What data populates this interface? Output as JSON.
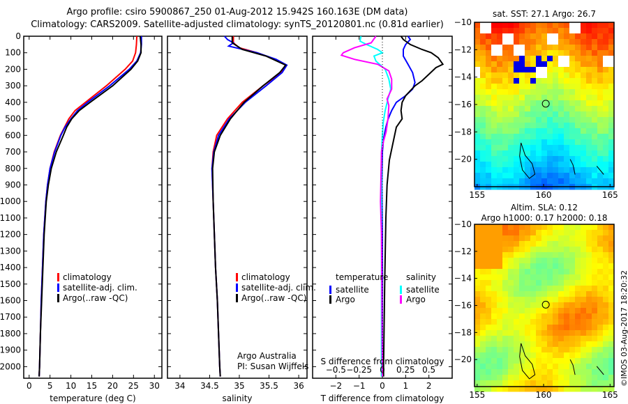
{
  "title_line1": "Argo profile: csiro 5900867_250 01-Aug-2012 15.942S 160.163E (DM data)",
  "title_line2": "Climatology: CARS2009. Satellite-adjusted climatology: synTS_20120801.nc (0.81d earlier)",
  "stamp": "©IMOS 03-Aug-2017 18:20:32",
  "colors": {
    "climatology": "#ff0000",
    "satellite": "#0000ff",
    "argo": "#000000",
    "s_satellite": "#00ffff",
    "s_argo": "#ff00ff"
  },
  "chart_data": [
    {
      "type": "line",
      "xlabel": "temperature (deg C)",
      "xticks": [
        0,
        5,
        10,
        15,
        20,
        25,
        30
      ],
      "xlim": [
        -1.3,
        31.8
      ],
      "ylim": [
        0,
        2070
      ],
      "yticks": [
        0,
        100,
        200,
        300,
        400,
        500,
        600,
        700,
        800,
        900,
        1000,
        1100,
        1200,
        1300,
        1400,
        1500,
        1600,
        1700,
        1800,
        1900,
        2000
      ],
      "legend": [
        "climatology",
        "satellite-adj. clim.",
        "Argo(..raw -QC)"
      ],
      "series": [
        {
          "name": "climatology",
          "color": "#ff0000",
          "points": [
            [
              0,
              25.8
            ],
            [
              50,
              25.7
            ],
            [
              100,
              25.5
            ],
            [
              150,
              24.8
            ],
            [
              200,
              23
            ],
            [
              300,
              18.5
            ],
            [
              400,
              13.5
            ],
            [
              450,
              11
            ],
            [
              500,
              9.5
            ],
            [
              550,
              8.5
            ],
            [
              600,
              7.5
            ],
            [
              700,
              6
            ],
            [
              800,
              5
            ],
            [
              900,
              4.4
            ],
            [
              1000,
              4
            ],
            [
              1200,
              3.5
            ],
            [
              1400,
              3.2
            ],
            [
              1600,
              2.9
            ],
            [
              1800,
              2.7
            ],
            [
              2000,
              2.5
            ],
            [
              2060,
              2.4
            ]
          ]
        },
        {
          "name": "satellite-adj. clim.",
          "color": "#0000ff",
          "points": [
            [
              0,
              26.9
            ],
            [
              50,
              26.9
            ],
            [
              100,
              26.7
            ],
            [
              150,
              25.8
            ],
            [
              200,
              24
            ],
            [
              300,
              19.3
            ],
            [
              400,
              14
            ],
            [
              450,
              11.6
            ],
            [
              500,
              10
            ],
            [
              550,
              8.6
            ],
            [
              600,
              7.6
            ],
            [
              700,
              6.1
            ],
            [
              800,
              5
            ],
            [
              900,
              4.4
            ],
            [
              1000,
              4
            ],
            [
              1200,
              3.5
            ],
            [
              1400,
              3.2
            ],
            [
              1600,
              2.9
            ],
            [
              1800,
              2.7
            ],
            [
              2000,
              2.5
            ],
            [
              2060,
              2.4
            ]
          ]
        },
        {
          "name": "Argo(..raw -QC)",
          "color": "#000000",
          "points": [
            [
              0,
              26.6
            ],
            [
              50,
              26.8
            ],
            [
              100,
              26.8
            ],
            [
              150,
              26
            ],
            [
              200,
              24.4
            ],
            [
              300,
              20
            ],
            [
              400,
              14.6
            ],
            [
              450,
              12
            ],
            [
              500,
              10.2
            ],
            [
              550,
              9
            ],
            [
              600,
              8.2
            ],
            [
              700,
              6.5
            ],
            [
              800,
              5.3
            ],
            [
              900,
              4.6
            ],
            [
              1000,
              4.1
            ],
            [
              1200,
              3.6
            ],
            [
              1400,
              3.3
            ],
            [
              1600,
              3
            ],
            [
              1800,
              2.7
            ],
            [
              2000,
              2.5
            ],
            [
              2060,
              2.4
            ]
          ]
        }
      ]
    },
    {
      "type": "line",
      "xlabel": "salinity",
      "xticks": [
        34,
        34.5,
        35,
        35.5,
        36
      ],
      "xlim": [
        33.79,
        36.14
      ],
      "ylim": [
        0,
        2070
      ],
      "legend": [
        "climatology",
        "satellite-adj. clim.",
        "Argo(..raw -QC)"
      ],
      "annotation": [
        "Argo Australia",
        "PI: Susan Wijffels"
      ],
      "series": [
        {
          "name": "climatology",
          "color": "#ff0000",
          "points": [
            [
              0,
              34.9
            ],
            [
              40,
              34.9
            ],
            [
              70,
              35
            ],
            [
              100,
              35.3
            ],
            [
              140,
              35.6
            ],
            [
              175,
              35.78
            ],
            [
              220,
              35.7
            ],
            [
              300,
              35.4
            ],
            [
              400,
              35.05
            ],
            [
              500,
              34.8
            ],
            [
              600,
              34.62
            ],
            [
              700,
              34.56
            ],
            [
              800,
              34.54
            ],
            [
              1000,
              34.56
            ],
            [
              1200,
              34.58
            ],
            [
              1400,
              34.6
            ],
            [
              1600,
              34.63
            ],
            [
              1800,
              34.65
            ],
            [
              2000,
              34.67
            ],
            [
              2060,
              34.68
            ]
          ]
        },
        {
          "name": "satellite-adj. clim.",
          "color": "#0000ff",
          "points": [
            [
              0,
              34.75
            ],
            [
              20,
              34.8
            ],
            [
              40,
              34.9
            ],
            [
              60,
              34.82
            ],
            [
              100,
              35.3
            ],
            [
              140,
              35.62
            ],
            [
              175,
              35.8
            ],
            [
              220,
              35.72
            ],
            [
              300,
              35.45
            ],
            [
              400,
              35.1
            ],
            [
              500,
              34.83
            ],
            [
              600,
              34.65
            ],
            [
              700,
              34.57
            ],
            [
              800,
              34.54
            ],
            [
              1000,
              34.56
            ],
            [
              1200,
              34.58
            ],
            [
              1400,
              34.6
            ],
            [
              1600,
              34.63
            ],
            [
              1800,
              34.65
            ],
            [
              2000,
              34.67
            ],
            [
              2060,
              34.68
            ]
          ]
        },
        {
          "name": "Argo(..raw -QC)",
          "color": "#000000",
          "points": [
            [
              0,
              34.88
            ],
            [
              40,
              34.88
            ],
            [
              80,
              35.05
            ],
            [
              120,
              35.45
            ],
            [
              175,
              35.78
            ],
            [
              220,
              35.68
            ],
            [
              300,
              35.4
            ],
            [
              400,
              35.08
            ],
            [
              500,
              34.85
            ],
            [
              600,
              34.68
            ],
            [
              700,
              34.58
            ],
            [
              800,
              34.55
            ],
            [
              1000,
              34.56
            ],
            [
              1200,
              34.58
            ],
            [
              1400,
              34.6
            ],
            [
              1600,
              34.63
            ],
            [
              1800,
              34.65
            ],
            [
              2000,
              34.67
            ],
            [
              2060,
              34.68
            ]
          ]
        }
      ]
    },
    {
      "type": "line",
      "xlabel": "T difference from climatology",
      "xlabel_top": "S difference from climatology",
      "xticks": [
        -2,
        -1,
        0,
        1,
        2
      ],
      "xticks_s": [
        -0.5,
        -0.25,
        0,
        0.25,
        0.5
      ],
      "xlim": [
        -3,
        3
      ],
      "ylim": [
        0,
        2070
      ],
      "legend_t_title": "temperature",
      "legend_s_title": "salinity",
      "legend_t": [
        "satellite",
        "Argo"
      ],
      "legend_s": [
        "satellite",
        "Argo"
      ],
      "series": [
        {
          "name": "T satellite",
          "color": "#0000ff",
          "units": "T",
          "points": [
            [
              0,
              1.1
            ],
            [
              20,
              1.2
            ],
            [
              50,
              1.0
            ],
            [
              80,
              0.9
            ],
            [
              120,
              0.9
            ],
            [
              170,
              1.1
            ],
            [
              220,
              1.3
            ],
            [
              280,
              1.4
            ],
            [
              320,
              1.3
            ],
            [
              360,
              1.0
            ],
            [
              400,
              0.6
            ],
            [
              450,
              0.4
            ],
            [
              500,
              0.25
            ],
            [
              550,
              0.15
            ],
            [
              620,
              0.05
            ],
            [
              700,
              0.0
            ],
            [
              900,
              -0.02
            ],
            [
              1200,
              0
            ],
            [
              2060,
              0
            ]
          ]
        },
        {
          "name": "T Argo",
          "color": "#000000",
          "units": "T",
          "points": [
            [
              0,
              0.8
            ],
            [
              20,
              0.9
            ],
            [
              50,
              1.2
            ],
            [
              80,
              1.7
            ],
            [
              100,
              2.1
            ],
            [
              130,
              2.4
            ],
            [
              170,
              2.6
            ],
            [
              190,
              2.3
            ],
            [
              230,
              2.0
            ],
            [
              270,
              1.7
            ],
            [
              300,
              1.4
            ],
            [
              330,
              1.2
            ],
            [
              360,
              1.0
            ],
            [
              400,
              0.85
            ],
            [
              450,
              0.8
            ],
            [
              500,
              0.85
            ],
            [
              550,
              0.6
            ],
            [
              650,
              0.45
            ],
            [
              750,
              0.3
            ],
            [
              900,
              0.2
            ],
            [
              1100,
              0.15
            ],
            [
              1500,
              0.1
            ],
            [
              2000,
              0.05
            ],
            [
              2060,
              0.05
            ]
          ]
        },
        {
          "name": "S satellite",
          "color": "#00ffff",
          "units": "S",
          "points": [
            [
              0,
              -0.23
            ],
            [
              30,
              -0.24
            ],
            [
              50,
              -0.17
            ],
            [
              80,
              -0.05
            ],
            [
              100,
              0
            ],
            [
              120,
              -0.09
            ],
            [
              150,
              -0.07
            ],
            [
              200,
              0.03
            ],
            [
              260,
              0.07
            ],
            [
              320,
              0.09
            ],
            [
              380,
              0.06
            ],
            [
              450,
              0.03
            ],
            [
              520,
              0.01
            ],
            [
              600,
              0
            ],
            [
              700,
              -0.01
            ],
            [
              1000,
              -0.01
            ],
            [
              2060,
              -0.01
            ]
          ]
        },
        {
          "name": "S Argo",
          "color": "#ff00ff",
          "units": "S",
          "points": [
            [
              0,
              -0.07
            ],
            [
              40,
              -0.12
            ],
            [
              70,
              -0.3
            ],
            [
              100,
              -0.42
            ],
            [
              115,
              -0.44
            ],
            [
              140,
              -0.3
            ],
            [
              170,
              -0.05
            ],
            [
              210,
              0.07
            ],
            [
              260,
              0.1
            ],
            [
              320,
              0.1
            ],
            [
              380,
              0.05
            ],
            [
              420,
              0.07
            ],
            [
              500,
              0.06
            ],
            [
              580,
              0.04
            ],
            [
              640,
              0.01
            ],
            [
              700,
              -0.01
            ],
            [
              1000,
              -0.02
            ],
            [
              1200,
              -0.01
            ],
            [
              2060,
              0
            ]
          ]
        }
      ]
    },
    {
      "type": "heatmap",
      "title": "sat. SST: 27.1  Argo: 26.7",
      "xticks": [
        155,
        160,
        165
      ],
      "yticks": [
        -10,
        -12,
        -14,
        -16,
        -18,
        -20
      ],
      "xlim": [
        154.8,
        165.3
      ],
      "ylim": [
        -22,
        -10
      ],
      "marker": [
        160.163,
        -15.942
      ]
    },
    {
      "type": "heatmap",
      "title": "Altim. SLA: 0.12",
      "subtitle": "Argo h1000: 0.17 h2000: 0.18",
      "xticks": [
        155,
        160,
        165
      ],
      "yticks": [
        -10,
        -12,
        -14,
        -16,
        -18,
        -20
      ],
      "xlim": [
        154.8,
        165.3
      ],
      "ylim": [
        -22,
        -10
      ],
      "marker": [
        160.163,
        -15.942
      ]
    }
  ]
}
